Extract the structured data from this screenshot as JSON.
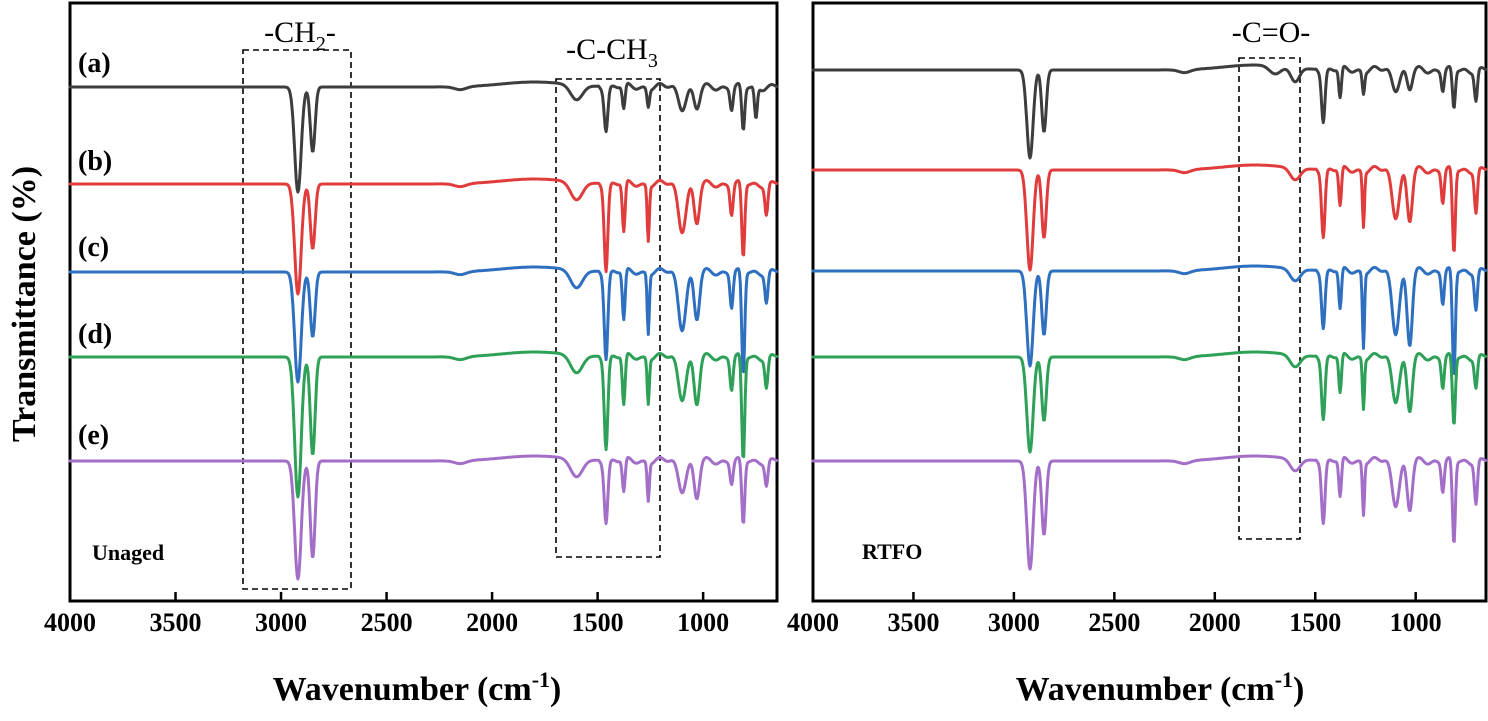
{
  "chart_data": [
    {
      "type": "line",
      "panel": "Unaged",
      "ylabel": "Transmittance (%)",
      "xlabel_main": "Wavenumber (cm",
      "xlabel_sup": "-1",
      "xlabel_end": ")",
      "xlim": [
        4000,
        650
      ],
      "xticks": [
        "4000",
        "3500",
        "3000",
        "2500",
        "2000",
        "1500",
        "1000"
      ],
      "series": [
        {
          "name": "(a)",
          "color": "#3d3d3d"
        },
        {
          "name": "(b)",
          "color": "#e03c3c"
        },
        {
          "name": "(c)",
          "color": "#2e6fc0"
        },
        {
          "name": "(d)",
          "color": "#2ea058"
        },
        {
          "name": "(e)",
          "color": "#a36ec8"
        }
      ],
      "annotations": [
        {
          "id": "ch2",
          "main": "-CH",
          "sub": "2",
          "tail": "-",
          "x_range": [
            3180,
            2650
          ]
        },
        {
          "id": "cch3",
          "main": "-C-CH",
          "sub": "3",
          "tail": "",
          "x_range": [
            1700,
            1200
          ]
        }
      ]
    },
    {
      "type": "line",
      "panel": "RTFO",
      "xlabel_main": "Wavenumber (cm",
      "xlabel_sup": "-1",
      "xlabel_end": ")",
      "xlim": [
        4000,
        650
      ],
      "xticks": [
        "4000",
        "3500",
        "3000",
        "2500",
        "2000",
        "1500",
        "1000"
      ],
      "series": [
        {
          "name": "(a)",
          "color": "#3d3d3d"
        },
        {
          "name": "(b)",
          "color": "#e03c3c"
        },
        {
          "name": "(c)",
          "color": "#2e6fc0"
        },
        {
          "name": "(d)",
          "color": "#2ea058"
        },
        {
          "name": "(e)",
          "color": "#a36ec8"
        }
      ],
      "annotations": [
        {
          "id": "co",
          "main": "-C=O-",
          "sub": "",
          "tail": "",
          "x_range": [
            1870,
            1560
          ]
        }
      ]
    }
  ]
}
